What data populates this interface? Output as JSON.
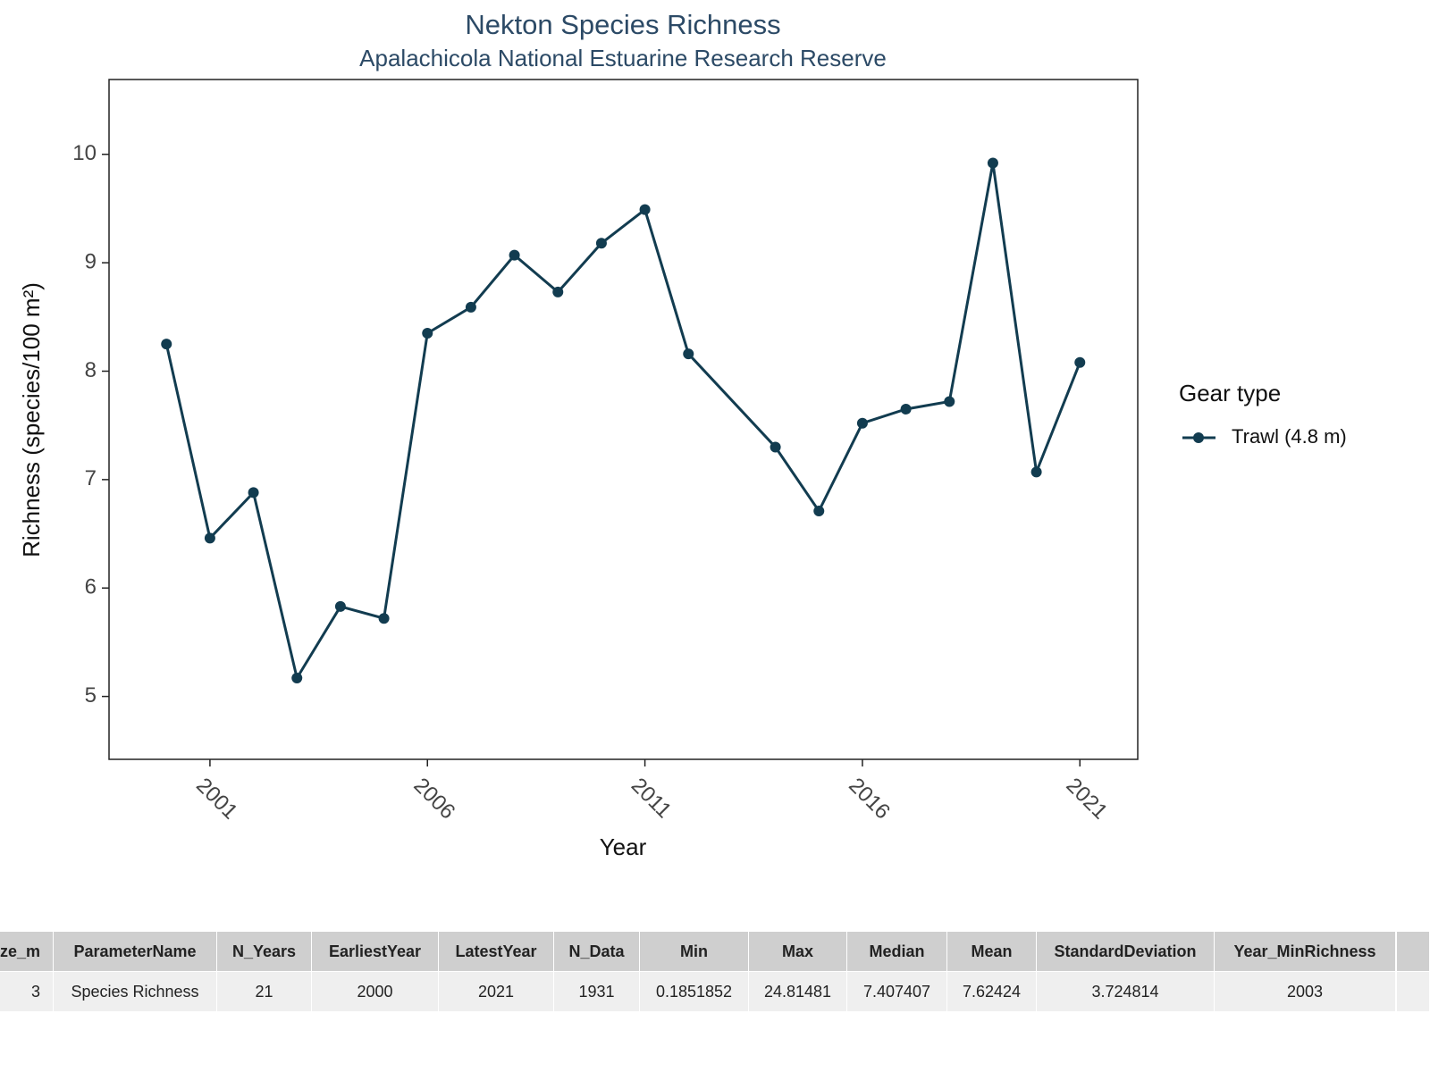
{
  "chart_data": {
    "type": "line",
    "title": "Nekton Species Richness",
    "subtitle": "Apalachicola National Estuarine Research Reserve",
    "x_label": "Year",
    "y_label": "Richness (species/100 m²)",
    "x": [
      2000,
      2001,
      2002,
      2003,
      2004,
      2005,
      2006,
      2007,
      2008,
      2009,
      2010,
      2011,
      2012,
      2014,
      2015,
      2016,
      2017,
      2018,
      2019,
      2020,
      2021
    ],
    "series": [
      {
        "name": "Trawl (4.8 m)",
        "color": "#123c50",
        "values": [
          8.25,
          6.46,
          6.88,
          5.17,
          5.83,
          5.72,
          8.35,
          8.59,
          9.07,
          8.73,
          9.18,
          9.49,
          8.16,
          7.3,
          6.71,
          7.52,
          7.65,
          7.72,
          9.92,
          7.07,
          8.08
        ]
      }
    ],
    "legend_title": "Gear type",
    "legend": "right",
    "xlim": [
      1998.68,
      2022.33
    ],
    "xticks": [
      2001,
      2006,
      2011,
      2016,
      2021
    ],
    "ylim": [
      4.42,
      10.69
    ],
    "yticks": [
      5,
      6,
      7,
      8,
      9,
      10
    ],
    "grid": false
  },
  "table": {
    "header": [
      "ze_m",
      "ParameterName",
      "N_Years",
      "EarliestYear",
      "LatestYear",
      "N_Data",
      "Min",
      "Max",
      "Median",
      "Mean",
      "StandardDeviation",
      "Year_MinRichness"
    ],
    "rows": [
      [
        "3",
        "Species Richness",
        "21",
        "2000",
        "2021",
        "1931",
        "0.1851852",
        "24.81481",
        "7.407407",
        "7.62424",
        "3.724814",
        "2003"
      ]
    ]
  }
}
